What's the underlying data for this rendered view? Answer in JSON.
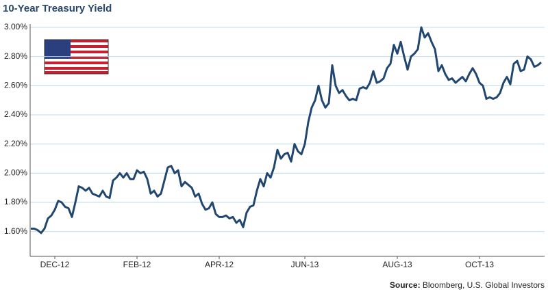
{
  "chart_data": {
    "type": "line",
    "title": "10-Year Treasury Yield",
    "source_label": "Source:",
    "source": "Bloomberg, U.S. Global Investors",
    "color": "#21466f",
    "grid": true,
    "ylim": [
      1.43,
      3.0
    ],
    "yticks": [
      {
        "value": 1.6,
        "label": "1.60%"
      },
      {
        "value": 1.8,
        "label": "1.80%"
      },
      {
        "value": 2.0,
        "label": "2.00%"
      },
      {
        "value": 2.2,
        "label": "2.20%"
      },
      {
        "value": 2.4,
        "label": "2.40%"
      },
      {
        "value": 2.6,
        "label": "2.60%"
      },
      {
        "value": 2.8,
        "label": "2.80%"
      },
      {
        "value": 3.0,
        "label": "3.00%"
      }
    ],
    "categories": [
      null,
      null,
      null,
      null,
      null,
      null,
      null,
      "DEC-12",
      null,
      null,
      null,
      null,
      null,
      null,
      null,
      null,
      null,
      null,
      null,
      null,
      null,
      null,
      null,
      null,
      null,
      null,
      null,
      null,
      null,
      null,
      null,
      "FEB-12",
      null,
      null,
      null,
      null,
      null,
      null,
      null,
      null,
      null,
      null,
      null,
      null,
      null,
      null,
      null,
      null,
      null,
      null,
      null,
      null,
      null,
      null,
      null,
      "APR-12",
      null,
      null,
      null,
      null,
      null,
      null,
      null,
      null,
      null,
      null,
      null,
      null,
      null,
      null,
      null,
      null,
      null,
      null,
      null,
      null,
      null,
      null,
      null,
      null,
      "JUN-13",
      null,
      null,
      null,
      null,
      null,
      null,
      null,
      null,
      null,
      null,
      null,
      null,
      null,
      null,
      null,
      null,
      null,
      null,
      null,
      null,
      null,
      null,
      null,
      null,
      null,
      null,
      "AUG-13",
      null,
      null,
      null,
      null,
      null,
      null,
      null,
      null,
      null,
      null,
      null,
      null,
      null,
      null,
      null,
      null,
      null,
      null,
      null,
      null,
      null,
      null,
      null,
      "OCT-13",
      null,
      null,
      null,
      null,
      null,
      null,
      null,
      null,
      null,
      null,
      null,
      null,
      null,
      null,
      null,
      null,
      null,
      null
    ],
    "values": [
      1.62,
      1.62,
      1.61,
      1.59,
      1.62,
      1.69,
      1.71,
      1.75,
      1.81,
      1.8,
      1.77,
      1.76,
      1.7,
      1.8,
      1.91,
      1.9,
      1.88,
      1.9,
      1.86,
      1.85,
      1.84,
      1.88,
      1.84,
      1.83,
      1.95,
      1.97,
      2.0,
      1.97,
      2.0,
      1.96,
      1.96,
      2.02,
      2.0,
      2.01,
      1.96,
      1.86,
      1.88,
      1.84,
      1.86,
      1.95,
      2.04,
      2.05,
      2.0,
      2.02,
      1.91,
      1.94,
      1.92,
      1.9,
      1.84,
      1.86,
      1.79,
      1.75,
      1.76,
      1.8,
      1.72,
      1.7,
      1.7,
      1.71,
      1.69,
      1.7,
      1.66,
      1.68,
      1.63,
      1.73,
      1.77,
      1.78,
      1.88,
      1.96,
      1.91,
      2.0,
      1.97,
      2.04,
      2.16,
      2.1,
      2.13,
      2.14,
      2.08,
      2.2,
      2.15,
      2.13,
      2.2,
      2.35,
      2.45,
      2.5,
      2.6,
      2.5,
      2.45,
      2.48,
      2.74,
      2.6,
      2.55,
      2.57,
      2.53,
      2.5,
      2.51,
      2.5,
      2.58,
      2.59,
      2.58,
      2.62,
      2.7,
      2.62,
      2.63,
      2.65,
      2.72,
      2.75,
      2.88,
      2.82,
      2.9,
      2.8,
      2.71,
      2.8,
      2.82,
      2.85,
      3.0,
      2.93,
      2.96,
      2.9,
      2.85,
      2.7,
      2.74,
      2.68,
      2.64,
      2.65,
      2.62,
      2.64,
      2.66,
      2.63,
      2.68,
      2.72,
      2.68,
      2.62,
      2.6,
      2.51,
      2.52,
      2.51,
      2.52,
      2.55,
      2.62,
      2.66,
      2.61,
      2.75,
      2.77,
      2.7,
      2.71,
      2.8,
      2.78,
      2.73,
      2.74,
      2.76
    ]
  }
}
